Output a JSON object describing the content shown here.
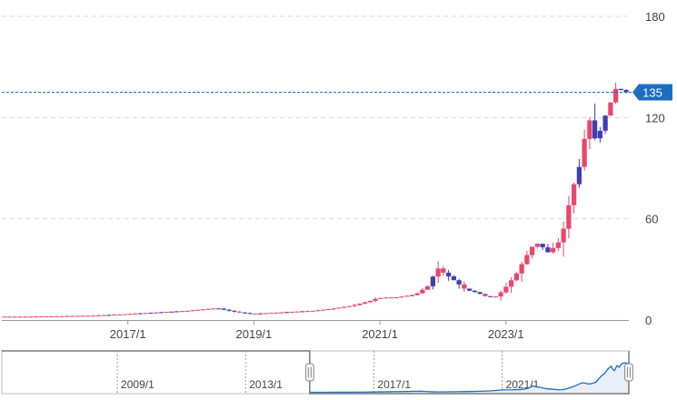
{
  "colors": {
    "up": "#e8476c",
    "down": "#3f3fb3",
    "grid": "#d8d8d8",
    "price_line": "#1b6ec2",
    "badge_bg": "#1b6ec2",
    "badge_text": "#ffffff",
    "axis_text": "#444444",
    "navigator_line": "#1b6ec2",
    "navigator_fill": "#e9eef8",
    "navigator_border": "#bfbfbf"
  },
  "chart_data": {
    "type": "candlestick",
    "y_ticks": [
      "0",
      "60",
      "120",
      "180"
    ],
    "ylim": [
      0,
      180
    ],
    "x_ticks": [
      "2017/1",
      "2019/1",
      "2021/1",
      "2023/1"
    ],
    "x_tick_values": [
      2017.0,
      2019.0,
      2021.0,
      2023.0
    ],
    "xlim": [
      2015.0,
      2024.95
    ],
    "current_price_label": "135",
    "current_price": 135,
    "grid": true,
    "series": {
      "points": [
        [
          2015.0,
          2.0
        ],
        [
          2015.5,
          2.0
        ],
        [
          2016.0,
          2.3
        ],
        [
          2016.5,
          2.6
        ],
        [
          2017.0,
          3.5
        ],
        [
          2017.5,
          4.5
        ],
        [
          2018.0,
          5.5
        ],
        [
          2018.2,
          6.2
        ],
        [
          2018.45,
          7.0
        ],
        [
          2018.6,
          5.8
        ],
        [
          2018.8,
          4.5
        ],
        [
          2019.0,
          3.6
        ],
        [
          2019.3,
          4.2
        ],
        [
          2019.6,
          4.8
        ],
        [
          2020.0,
          5.5
        ],
        [
          2020.3,
          6.8
        ],
        [
          2020.6,
          8.5
        ],
        [
          2020.9,
          11.5
        ],
        [
          2021.0,
          13.0
        ],
        [
          2021.3,
          13.5
        ],
        [
          2021.6,
          15.0
        ],
        [
          2021.8,
          20.0
        ],
        [
          2021.9,
          27.0
        ],
        [
          2021.95,
          31.0
        ],
        [
          2022.05,
          28.0
        ],
        [
          2022.2,
          24.0
        ],
        [
          2022.4,
          18.0
        ],
        [
          2022.6,
          16.0
        ],
        [
          2022.75,
          13.5
        ],
        [
          2022.9,
          14.0
        ],
        [
          2023.05,
          20.0
        ],
        [
          2023.2,
          27.0
        ],
        [
          2023.35,
          37.0
        ],
        [
          2023.5,
          46.0
        ],
        [
          2023.6,
          44.0
        ],
        [
          2023.7,
          40.0
        ],
        [
          2023.8,
          43.0
        ],
        [
          2023.92,
          48.0
        ],
        [
          2024.0,
          62.0
        ],
        [
          2024.1,
          78.0
        ],
        [
          2024.2,
          90.0
        ],
        [
          2024.3,
          110.0
        ],
        [
          2024.4,
          122.0
        ],
        [
          2024.45,
          108.0
        ],
        [
          2024.5,
          102.0
        ],
        [
          2024.58,
          125.0
        ],
        [
          2024.65,
          118.0
        ],
        [
          2024.72,
          133.0
        ],
        [
          2024.8,
          138.0
        ],
        [
          2024.88,
          136.0
        ],
        [
          2024.95,
          135.0
        ]
      ]
    },
    "navigator": {
      "x_ticks": [
        "2009/1",
        "2013/1",
        "2017/1",
        "2021/1"
      ],
      "x_tick_values": [
        2009.0,
        2013.0,
        2017.0,
        2021.0
      ],
      "xlim": [
        2005.4,
        2024.95
      ],
      "selected_range": [
        2015.0,
        2024.95
      ]
    }
  }
}
